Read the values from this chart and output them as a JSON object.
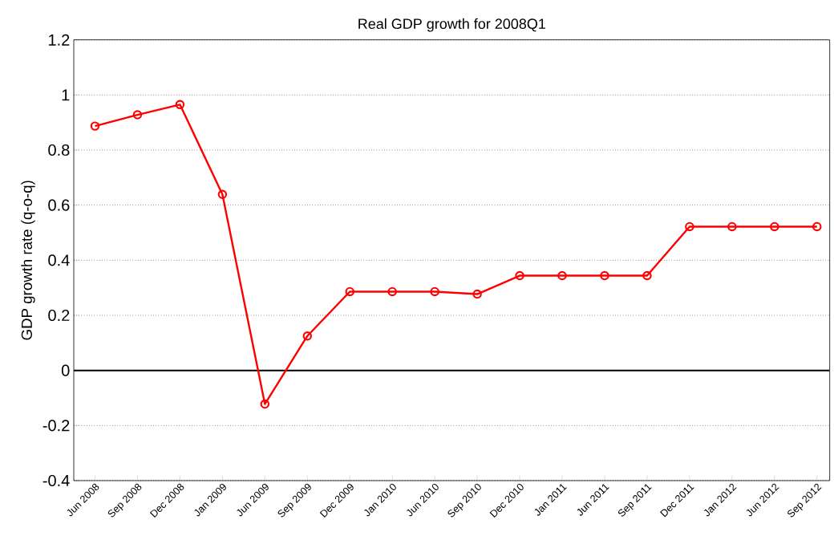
{
  "chart_data": {
    "type": "line",
    "title": "Real GDP growth for 2008Q1",
    "ylabel": "GDP growth rate (q-o-q)",
    "categories": [
      "Jun 2008",
      "Sep 2008",
      "Dec 2008",
      "Jan 2009",
      "Jun 2009",
      "Sep 2009",
      "Dec 2009",
      "Jan 2010",
      "Jun 2010",
      "Sep 2010",
      "Dec 2010",
      "Jan 2011",
      "Jun 2011",
      "Sep 2011",
      "Dec 2011",
      "Jan 2012",
      "Jun 2012",
      "Sep 2012"
    ],
    "series": [
      {
        "color": "#ff0000",
        "values": [
          0.887,
          0.928,
          0.965,
          0.639,
          -0.122,
          0.125,
          0.286,
          0.286,
          0.286,
          0.277,
          0.344,
          0.344,
          0.344,
          0.344,
          0.522,
          0.522,
          0.522,
          0.522
        ]
      }
    ],
    "ylim": [
      -0.4,
      1.2
    ],
    "yticks": [
      -0.4,
      -0.2,
      0,
      0.2,
      0.4,
      0.6,
      0.8,
      1,
      1.2
    ],
    "ref_lines": [
      {
        "axis": "y",
        "value": 0,
        "color": "#000000"
      }
    ],
    "grid": "y",
    "marker": "circle",
    "line_style": "solid"
  }
}
